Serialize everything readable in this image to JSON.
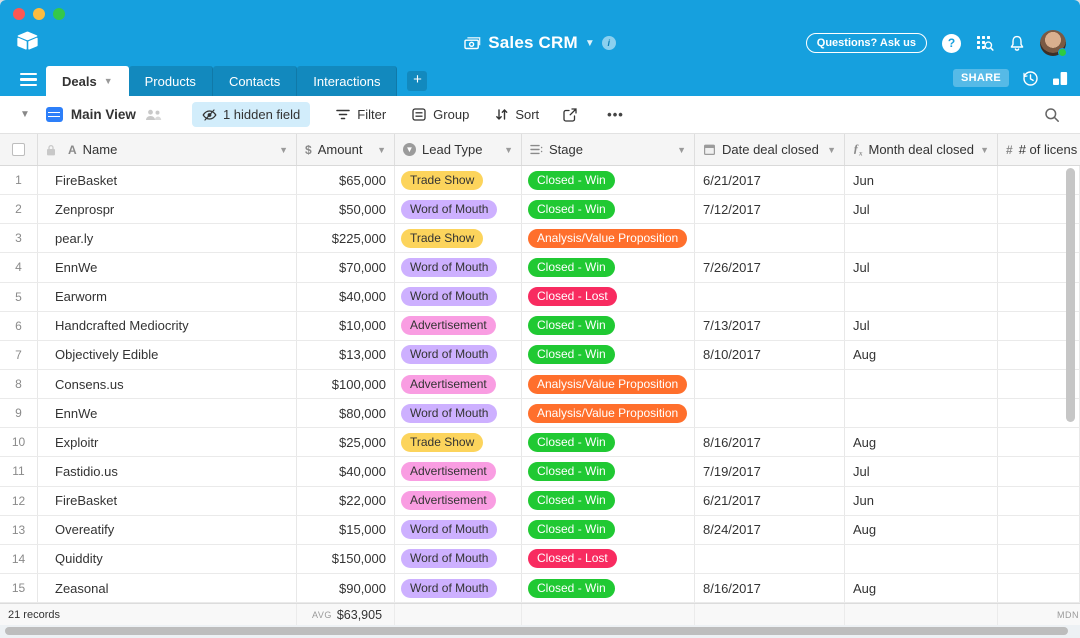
{
  "topbar": {
    "title": "Sales CRM",
    "questions_label": "Questions? Ask us"
  },
  "tabs": {
    "share_label": "SHARE",
    "items": [
      {
        "label": "Deals",
        "active": true
      },
      {
        "label": "Products",
        "active": false
      },
      {
        "label": "Contacts",
        "active": false
      },
      {
        "label": "Interactions",
        "active": false
      }
    ]
  },
  "toolbar": {
    "view_name": "Main View",
    "hidden_field_label": "1 hidden field",
    "filter_label": "Filter",
    "group_label": "Group",
    "sort_label": "Sort",
    "more_label": "•••"
  },
  "table": {
    "columns": [
      {
        "label": "Name",
        "type": "text"
      },
      {
        "label": "Amount",
        "type": "currency"
      },
      {
        "label": "Lead Type",
        "type": "select"
      },
      {
        "label": "Stage",
        "type": "list"
      },
      {
        "label": "Date deal closed",
        "type": "date"
      },
      {
        "label": "Month deal closed",
        "type": "formula"
      },
      {
        "label": "# of licens",
        "type": "number"
      }
    ],
    "rows": [
      {
        "num": "1",
        "name": "FireBasket",
        "amount": "$65,000",
        "lead": "Trade Show",
        "stage": "Closed - Win",
        "date": "6/21/2017",
        "month": "Jun"
      },
      {
        "num": "2",
        "name": "Zenprospr",
        "amount": "$50,000",
        "lead": "Word of Mouth",
        "stage": "Closed - Win",
        "date": "7/12/2017",
        "month": "Jul"
      },
      {
        "num": "3",
        "name": "pear.ly",
        "amount": "$225,000",
        "lead": "Trade Show",
        "stage": "Analysis/Value Proposition",
        "date": "",
        "month": ""
      },
      {
        "num": "4",
        "name": "EnnWe",
        "amount": "$70,000",
        "lead": "Word of Mouth",
        "stage": "Closed - Win",
        "date": "7/26/2017",
        "month": "Jul"
      },
      {
        "num": "5",
        "name": "Earworm",
        "amount": "$40,000",
        "lead": "Word of Mouth",
        "stage": "Closed - Lost",
        "date": "",
        "month": ""
      },
      {
        "num": "6",
        "name": "Handcrafted Mediocrity",
        "amount": "$10,000",
        "lead": "Advertisement",
        "stage": "Closed - Win",
        "date": "7/13/2017",
        "month": "Jul"
      },
      {
        "num": "7",
        "name": "Objectively Edible",
        "amount": "$13,000",
        "lead": "Word of Mouth",
        "stage": "Closed - Win",
        "date": "8/10/2017",
        "month": "Aug"
      },
      {
        "num": "8",
        "name": "Consens.us",
        "amount": "$100,000",
        "lead": "Advertisement",
        "stage": "Analysis/Value Proposition",
        "date": "",
        "month": ""
      },
      {
        "num": "9",
        "name": "EnnWe",
        "amount": "$80,000",
        "lead": "Word of Mouth",
        "stage": "Analysis/Value Proposition",
        "date": "",
        "month": ""
      },
      {
        "num": "10",
        "name": "Exploitr",
        "amount": "$25,000",
        "lead": "Trade Show",
        "stage": "Closed - Win",
        "date": "8/16/2017",
        "month": "Aug"
      },
      {
        "num": "11",
        "name": "Fastidio.us",
        "amount": "$40,000",
        "lead": "Advertisement",
        "stage": "Closed - Win",
        "date": "7/19/2017",
        "month": "Jul"
      },
      {
        "num": "12",
        "name": "FireBasket",
        "amount": "$22,000",
        "lead": "Advertisement",
        "stage": "Closed - Win",
        "date": "6/21/2017",
        "month": "Jun"
      },
      {
        "num": "13",
        "name": "Overeatify",
        "amount": "$15,000",
        "lead": "Word of Mouth",
        "stage": "Closed - Win",
        "date": "8/24/2017",
        "month": "Aug"
      },
      {
        "num": "14",
        "name": "Quiddity",
        "amount": "$150,000",
        "lead": "Word of Mouth",
        "stage": "Closed - Lost",
        "date": "",
        "month": ""
      },
      {
        "num": "15",
        "name": "Zeasonal",
        "amount": "$90,000",
        "lead": "Word of Mouth",
        "stage": "Closed - Win",
        "date": "8/16/2017",
        "month": "Aug"
      }
    ]
  },
  "pills": {
    "Trade Show": {
      "bg": "#FCD45C",
      "fg": "#333333"
    },
    "Word of Mouth": {
      "bg": "#CDB0FF",
      "fg": "#333333"
    },
    "Advertisement": {
      "bg": "#F99DE2",
      "fg": "#333333"
    },
    "Closed - Win": {
      "bg": "#20C933",
      "fg": "#FFFFFF"
    },
    "Closed - Lost": {
      "bg": "#F82B60",
      "fg": "#FFFFFF"
    },
    "Analysis/Value Proposition": {
      "bg": "#FF6F2C",
      "fg": "#FFFFFF"
    }
  },
  "footer": {
    "records": "21 records",
    "avg_label": "AVG",
    "avg_value": "$63,905",
    "mdn_label": "MDN"
  },
  "colors": {
    "topbar_blue": "#16A0DE",
    "view_icon_blue": "#2D7FF9",
    "hidden_pill_bg": "#D2EDFB"
  }
}
